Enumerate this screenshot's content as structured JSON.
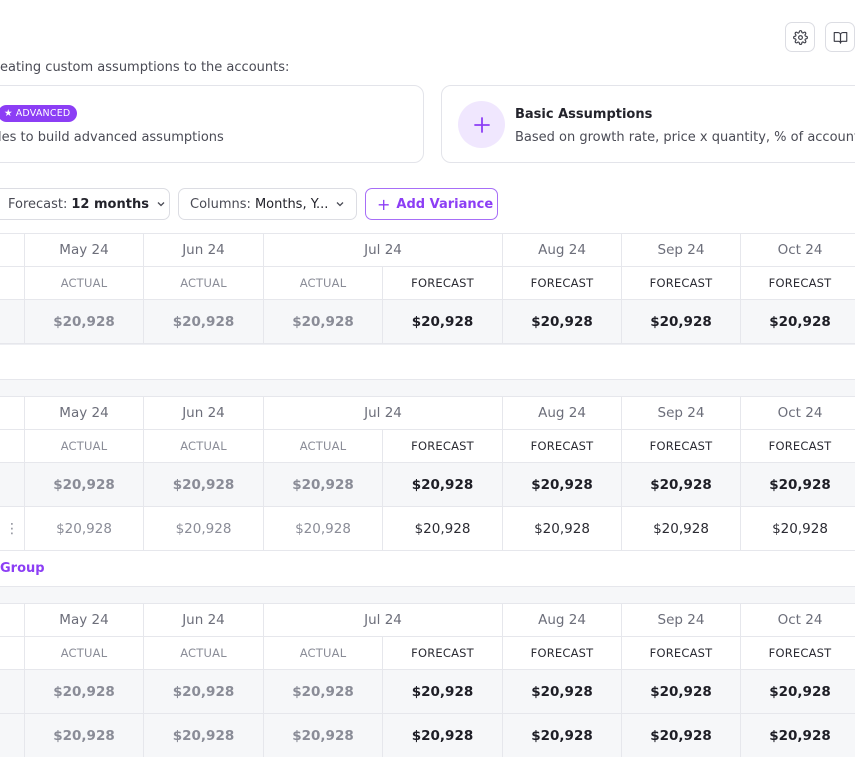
{
  "toolbar": {
    "settings_icon": "gear-icon",
    "docs_icon": "book-icon"
  },
  "intro_text": "eating custom assumptions to the accounts:",
  "cards": {
    "advanced": {
      "badge": "ADVANCED",
      "description": "les to build advanced assumptions"
    },
    "basic": {
      "title": "Basic Assumptions",
      "description": "Based on growth rate, price x quantity, % of account"
    }
  },
  "controls": {
    "forecast_label": "Forecast:",
    "forecast_value": "12 months",
    "columns_label": "Columns:",
    "columns_value": "Months, Y...",
    "add_variance": "Add Variance"
  },
  "columns": [
    {
      "month": "May 24",
      "type": "ACTUAL"
    },
    {
      "month": "Jun 24",
      "type": "ACTUAL"
    },
    {
      "month": "Jul 24",
      "type": "ACTUAL"
    },
    {
      "month": "",
      "type": "FORECAST"
    },
    {
      "month": "Aug 24",
      "type": "FORECAST"
    },
    {
      "month": "Sep 24",
      "type": "FORECAST"
    },
    {
      "month": "Oct 24",
      "type": "FORECAST"
    }
  ],
  "tables": [
    {
      "rows": [
        {
          "style": "bold",
          "values": [
            "$20,928",
            "$20,928",
            "$20,928",
            "$20,928",
            "$20,928",
            "$20,928",
            "$20,928"
          ]
        }
      ]
    },
    {
      "rows": [
        {
          "style": "bold",
          "values": [
            "$20,928",
            "$20,928",
            "$20,928",
            "$20,928",
            "$20,928",
            "$20,928",
            "$20,928"
          ]
        },
        {
          "style": "light",
          "values": [
            "$20,928",
            "$20,928",
            "$20,928",
            "$20,928",
            "$20,928",
            "$20,928",
            "$20,928"
          ]
        }
      ]
    },
    {
      "rows": [
        {
          "style": "bold",
          "values": [
            "$20,928",
            "$20,928",
            "$20,928",
            "$20,928",
            "$20,928",
            "$20,928",
            "$20,928"
          ]
        },
        {
          "style": "bold",
          "values": [
            "$20,928",
            "$20,928",
            "$20,928",
            "$20,928",
            "$20,928",
            "$20,928",
            "$20,928"
          ]
        }
      ]
    }
  ],
  "row_menu_icon": "more-vertical-icon",
  "group_link": "Group"
}
